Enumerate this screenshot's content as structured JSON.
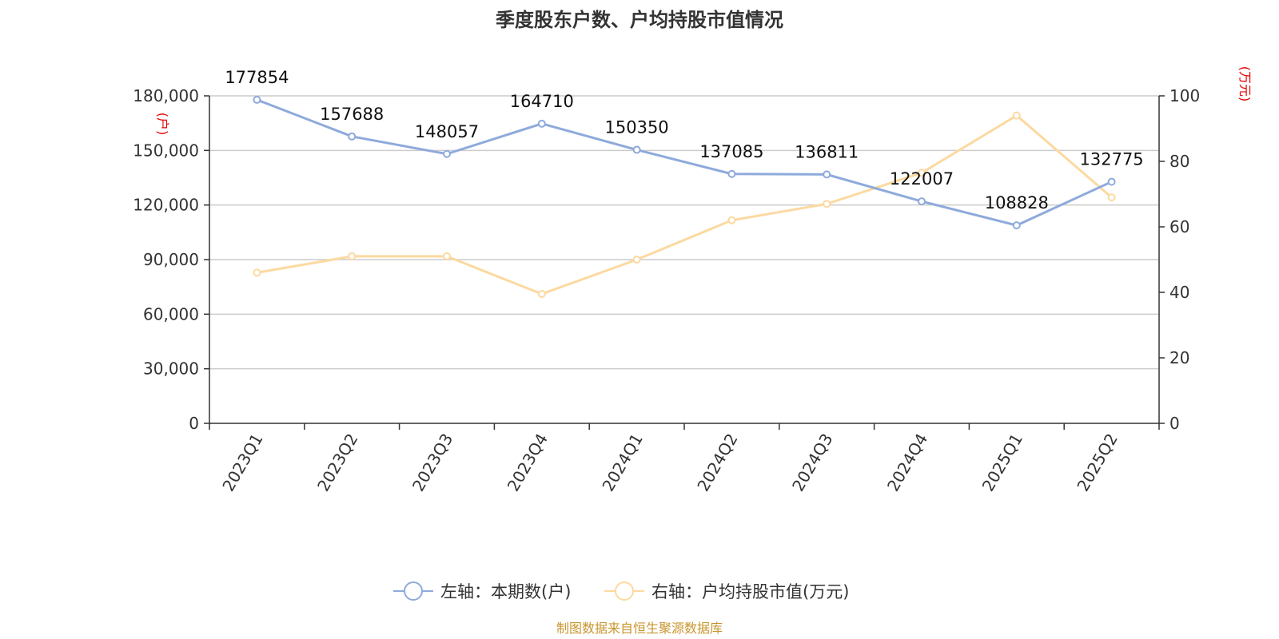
{
  "title": "季度股东户数、户均持股市值情况",
  "source": "制图数据来自恒生聚源数据库",
  "colors": {
    "left_series": "#8eaadb",
    "right_series": "#fcd9a0",
    "unit_label": "#e60000",
    "source": "#c8962e",
    "grid": "#cccccc"
  },
  "chart_data": {
    "type": "line",
    "categories": [
      "2023Q1",
      "2023Q2",
      "2023Q3",
      "2023Q4",
      "2024Q1",
      "2024Q2",
      "2024Q3",
      "2024Q4",
      "2025Q1",
      "2025Q2"
    ],
    "series": [
      {
        "name": "左轴：本期数(户)",
        "axis": "left",
        "values": [
          177854,
          157688,
          148057,
          164710,
          150350,
          137085,
          136811,
          122007,
          108828,
          132775
        ],
        "data_labels": [
          "177854",
          "157688",
          "148057",
          "164710",
          "150350",
          "137085",
          "136811",
          "122007",
          "108828",
          "132775"
        ]
      },
      {
        "name": "右轴：户均持股市值(万元)",
        "axis": "right",
        "values": [
          46,
          51,
          51,
          39.5,
          50,
          62,
          67,
          76.5,
          94,
          69
        ]
      }
    ],
    "left_axis": {
      "unit": "(户)",
      "range": [
        0,
        180000
      ],
      "ticks": [
        "0",
        "30,000",
        "60,000",
        "90,000",
        "120,000",
        "150,000",
        "180,000"
      ],
      "tick_values": [
        0,
        30000,
        60000,
        90000,
        120000,
        150000,
        180000
      ]
    },
    "right_axis": {
      "unit": "(万元)",
      "range": [
        0,
        100
      ],
      "ticks": [
        "0",
        "20",
        "40",
        "60",
        "80",
        "100"
      ],
      "tick_values": [
        0,
        20,
        40,
        60,
        80,
        100
      ]
    },
    "grid": true,
    "legend_position": "bottom"
  }
}
